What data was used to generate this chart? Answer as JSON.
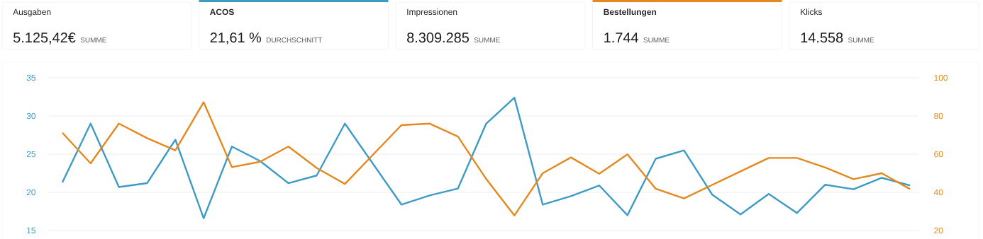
{
  "chart_data": [
    {
      "type": "other",
      "categories": [
        "Ausgaben",
        "ACOS",
        "Impressionen",
        "Bestellungen",
        "Klicks"
      ],
      "value_labels": [
        "5.125,42€",
        "21,61 %",
        "8.309.285",
        "1.744",
        "14.558"
      ],
      "annotations": [
        "SUMME",
        "DURCHSCHNITT",
        "SUMME",
        "SUMME",
        "SUMME"
      ],
      "colors": [
        null,
        "#3d9bc4",
        null,
        "#e3891f",
        null
      ]
    },
    {
      "type": "line",
      "categories": [
        null,
        null,
        null,
        null,
        null,
        null,
        null,
        null,
        null,
        null,
        null,
        null,
        null,
        null,
        null,
        null,
        null,
        null,
        null,
        null,
        null,
        null,
        null,
        null,
        null,
        null,
        null,
        null,
        null,
        null,
        null
      ],
      "series": [
        {
          "color": "#3d9bc4",
          "values": [
            21.3,
            29.0,
            20.7,
            21.2,
            26.9,
            16.6,
            26.0,
            24.1,
            21.2,
            22.2,
            29.0,
            23.7,
            18.4,
            19.6,
            20.5,
            29.0,
            32.4,
            18.4,
            19.5,
            20.9,
            17.0,
            24.4,
            25.5,
            19.7,
            17.1,
            19.8,
            17.3,
            21.0,
            20.4,
            21.9,
            20.9
          ]
        },
        {
          "color": "#e3891f",
          "axis": "y2",
          "values": [
            71.2,
            55.2,
            76,
            68.4,
            62,
            87.2,
            53.2,
            56,
            64,
            52.8,
            44.4,
            59.8,
            75.2,
            76,
            69.2,
            47,
            27.9,
            50,
            58.3,
            49.7,
            59.9,
            41.9,
            36.8,
            43.9,
            51,
            58,
            58,
            53,
            46.9,
            50,
            41.7
          ]
        }
      ],
      "ylim": [
        15,
        35
      ],
      "yticks": [
        15,
        20,
        25,
        30,
        35
      ],
      "y2lim": [
        20,
        100
      ],
      "y2ticks": [
        20,
        40,
        60,
        80,
        100
      ],
      "grid": "y"
    }
  ]
}
